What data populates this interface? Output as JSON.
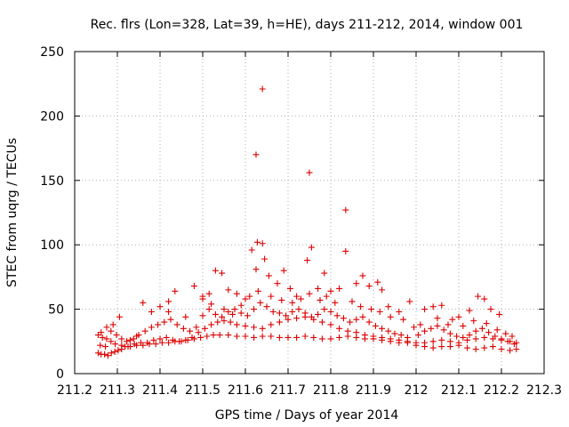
{
  "chart_data": {
    "type": "scatter",
    "title": "Rec. flrs (Lon=328, Lat=39, h=HE), days 211-212, 2014, window 001",
    "xlabel": "GPS time / Days of year 2014",
    "ylabel": "STEC from uqrg / TECUs",
    "xlim": [
      211.2,
      212.3
    ],
    "ylim": [
      0,
      250
    ],
    "xticks": [
      {
        "value": 211.2,
        "label": "211.2"
      },
      {
        "value": 211.3,
        "label": "211.3"
      },
      {
        "value": 211.4,
        "label": "211.4"
      },
      {
        "value": 211.5,
        "label": "211.5"
      },
      {
        "value": 211.6,
        "label": "211.6"
      },
      {
        "value": 211.7,
        "label": "211.7"
      },
      {
        "value": 211.8,
        "label": "211.8"
      },
      {
        "value": 211.9,
        "label": "211.9"
      },
      {
        "value": 212.0,
        "label": "212"
      },
      {
        "value": 212.1,
        "label": "212.1"
      },
      {
        "value": 212.2,
        "label": "212.2"
      },
      {
        "value": 212.3,
        "label": "212.3"
      }
    ],
    "yticks": [
      {
        "value": 0,
        "label": "0"
      },
      {
        "value": 50,
        "label": "50"
      },
      {
        "value": 100,
        "label": "100"
      },
      {
        "value": 150,
        "label": "150"
      },
      {
        "value": 200,
        "label": "200"
      },
      {
        "value": 250,
        "label": "250"
      }
    ],
    "grid": true,
    "marker": "plus",
    "color": "#dd0000",
    "points": [
      [
        211.255,
        16
      ],
      [
        211.262,
        15
      ],
      [
        211.27,
        15
      ],
      [
        211.278,
        14
      ],
      [
        211.286,
        16
      ],
      [
        211.294,
        17
      ],
      [
        211.302,
        18
      ],
      [
        211.31,
        19
      ],
      [
        211.318,
        21
      ],
      [
        211.33,
        21
      ],
      [
        211.345,
        22
      ],
      [
        211.36,
        22
      ],
      [
        211.375,
        23
      ],
      [
        211.39,
        23
      ],
      [
        211.405,
        24
      ],
      [
        211.42,
        24
      ],
      [
        211.435,
        25
      ],
      [
        211.45,
        25
      ],
      [
        211.465,
        26
      ],
      [
        211.48,
        27
      ],
      [
        211.495,
        28
      ],
      [
        211.51,
        29
      ],
      [
        211.525,
        30
      ],
      [
        211.54,
        30
      ],
      [
        211.56,
        30
      ],
      [
        211.58,
        29
      ],
      [
        211.6,
        29
      ],
      [
        211.62,
        28
      ],
      [
        211.64,
        29
      ],
      [
        211.66,
        29
      ],
      [
        211.68,
        28
      ],
      [
        211.7,
        28
      ],
      [
        211.72,
        28
      ],
      [
        211.74,
        29
      ],
      [
        211.76,
        28
      ],
      [
        211.78,
        27
      ],
      [
        211.8,
        27
      ],
      [
        211.82,
        28
      ],
      [
        211.84,
        29
      ],
      [
        211.86,
        28
      ],
      [
        211.88,
        27
      ],
      [
        211.9,
        27
      ],
      [
        211.92,
        26
      ],
      [
        211.94,
        25
      ],
      [
        211.96,
        24
      ],
      [
        211.98,
        24
      ],
      [
        212.0,
        22
      ],
      [
        212.02,
        21
      ],
      [
        212.04,
        20
      ],
      [
        212.06,
        21
      ],
      [
        212.08,
        21
      ],
      [
        212.1,
        22
      ],
      [
        212.12,
        20
      ],
      [
        212.14,
        19
      ],
      [
        212.16,
        20
      ],
      [
        212.18,
        21
      ],
      [
        212.2,
        19
      ],
      [
        212.22,
        18
      ],
      [
        212.235,
        19
      ],
      [
        211.255,
        30
      ],
      [
        211.265,
        28
      ],
      [
        211.275,
        27
      ],
      [
        211.285,
        25
      ],
      [
        211.295,
        23
      ],
      [
        211.31,
        22
      ],
      [
        211.325,
        21
      ],
      [
        211.34,
        23
      ],
      [
        211.355,
        24
      ],
      [
        211.37,
        24
      ],
      [
        211.385,
        26
      ],
      [
        211.4,
        27
      ],
      [
        211.415,
        28
      ],
      [
        211.43,
        26
      ],
      [
        211.445,
        25
      ],
      [
        211.46,
        26
      ],
      [
        211.475,
        28
      ],
      [
        211.49,
        32
      ],
      [
        211.505,
        35
      ],
      [
        211.52,
        38
      ],
      [
        211.535,
        40
      ],
      [
        211.55,
        41
      ],
      [
        211.565,
        40
      ],
      [
        211.58,
        38
      ],
      [
        211.6,
        37
      ],
      [
        211.62,
        36
      ],
      [
        211.64,
        35
      ],
      [
        211.66,
        38
      ],
      [
        211.68,
        40
      ],
      [
        211.7,
        42
      ],
      [
        211.72,
        43
      ],
      [
        211.74,
        44
      ],
      [
        211.76,
        42
      ],
      [
        211.78,
        40
      ],
      [
        211.8,
        38
      ],
      [
        211.82,
        35
      ],
      [
        211.84,
        33
      ],
      [
        211.86,
        32
      ],
      [
        211.88,
        30
      ],
      [
        211.9,
        29
      ],
      [
        211.92,
        28
      ],
      [
        211.94,
        27
      ],
      [
        211.96,
        26
      ],
      [
        211.98,
        25
      ],
      [
        212.0,
        24
      ],
      [
        212.02,
        24
      ],
      [
        212.04,
        25
      ],
      [
        212.06,
        26
      ],
      [
        212.08,
        25
      ],
      [
        212.1,
        24
      ],
      [
        212.12,
        26
      ],
      [
        212.14,
        27
      ],
      [
        212.16,
        28
      ],
      [
        212.18,
        27
      ],
      [
        212.2,
        26
      ],
      [
        212.22,
        25
      ],
      [
        212.235,
        24
      ],
      [
        211.26,
        22
      ],
      [
        211.272,
        21
      ],
      [
        211.285,
        33
      ],
      [
        211.298,
        30
      ],
      [
        211.31,
        27
      ],
      [
        211.322,
        25
      ],
      [
        211.338,
        27
      ],
      [
        211.35,
        30
      ],
      [
        211.365,
        33
      ],
      [
        211.38,
        36
      ],
      [
        211.395,
        38
      ],
      [
        211.41,
        40
      ],
      [
        211.425,
        42
      ],
      [
        211.44,
        38
      ],
      [
        211.455,
        35
      ],
      [
        211.47,
        33
      ],
      [
        211.485,
        36
      ],
      [
        211.5,
        45
      ],
      [
        211.515,
        50
      ],
      [
        211.53,
        46
      ],
      [
        211.545,
        44
      ],
      [
        211.56,
        48
      ],
      [
        211.575,
        50
      ],
      [
        211.59,
        47
      ],
      [
        211.605,
        45
      ],
      [
        211.62,
        50
      ],
      [
        211.635,
        55
      ],
      [
        211.65,
        52
      ],
      [
        211.665,
        48
      ],
      [
        211.68,
        47
      ],
      [
        211.695,
        45
      ],
      [
        211.71,
        48
      ],
      [
        211.725,
        50
      ],
      [
        211.74,
        47
      ],
      [
        211.755,
        44
      ],
      [
        211.77,
        46
      ],
      [
        211.785,
        50
      ],
      [
        211.8,
        48
      ],
      [
        211.815,
        45
      ],
      [
        211.83,
        43
      ],
      [
        211.845,
        40
      ],
      [
        211.86,
        42
      ],
      [
        211.875,
        44
      ],
      [
        211.89,
        40
      ],
      [
        211.905,
        37
      ],
      [
        211.92,
        35
      ],
      [
        211.935,
        33
      ],
      [
        211.95,
        31
      ],
      [
        211.965,
        30
      ],
      [
        211.98,
        28
      ],
      [
        212.005,
        30
      ],
      [
        212.02,
        33
      ],
      [
        212.035,
        35
      ],
      [
        212.05,
        37
      ],
      [
        212.065,
        34
      ],
      [
        212.08,
        31
      ],
      [
        212.095,
        29
      ],
      [
        212.11,
        28
      ],
      [
        212.125,
        30
      ],
      [
        212.14,
        33
      ],
      [
        212.155,
        35
      ],
      [
        212.17,
        32
      ],
      [
        212.185,
        29
      ],
      [
        212.2,
        27
      ],
      [
        212.215,
        25
      ],
      [
        212.23,
        23
      ],
      [
        211.262,
        32
      ],
      [
        211.275,
        36
      ],
      [
        211.29,
        38
      ],
      [
        211.305,
        44
      ],
      [
        211.36,
        55
      ],
      [
        211.38,
        48
      ],
      [
        211.4,
        52
      ],
      [
        211.42,
        56
      ],
      [
        211.435,
        64
      ],
      [
        211.48,
        68
      ],
      [
        211.5,
        58
      ],
      [
        211.515,
        62
      ],
      [
        211.53,
        80
      ],
      [
        211.545,
        78
      ],
      [
        211.56,
        65
      ],
      [
        211.58,
        62
      ],
      [
        211.6,
        58
      ],
      [
        211.615,
        96
      ],
      [
        211.625,
        81
      ],
      [
        211.628,
        102
      ],
      [
        211.64,
        101
      ],
      [
        211.645,
        89
      ],
      [
        211.655,
        76
      ],
      [
        211.675,
        70
      ],
      [
        211.69,
        80
      ],
      [
        211.705,
        66
      ],
      [
        211.72,
        60
      ],
      [
        211.745,
        88
      ],
      [
        211.755,
        98
      ],
      [
        211.77,
        66
      ],
      [
        211.785,
        78
      ],
      [
        211.8,
        64
      ],
      [
        211.82,
        66
      ],
      [
        211.835,
        95
      ],
      [
        211.86,
        70
      ],
      [
        211.875,
        76
      ],
      [
        211.89,
        68
      ],
      [
        211.91,
        71
      ],
      [
        211.92,
        65
      ],
      [
        211.935,
        52
      ],
      [
        211.96,
        48
      ],
      [
        211.985,
        56
      ],
      [
        212.02,
        50
      ],
      [
        212.04,
        52
      ],
      [
        212.06,
        53
      ],
      [
        212.085,
        42
      ],
      [
        212.1,
        44
      ],
      [
        212.125,
        49
      ],
      [
        212.145,
        60
      ],
      [
        212.16,
        58
      ],
      [
        212.175,
        50
      ],
      [
        212.195,
        46
      ],
      [
        211.33,
        26
      ],
      [
        211.345,
        29
      ],
      [
        211.42,
        48
      ],
      [
        211.46,
        44
      ],
      [
        211.5,
        60
      ],
      [
        211.52,
        54
      ],
      [
        211.55,
        50
      ],
      [
        211.57,
        46
      ],
      [
        211.59,
        53
      ],
      [
        211.61,
        60
      ],
      [
        211.63,
        64
      ],
      [
        211.66,
        60
      ],
      [
        211.685,
        57
      ],
      [
        211.71,
        55
      ],
      [
        211.73,
        58
      ],
      [
        211.75,
        62
      ],
      [
        211.775,
        57
      ],
      [
        211.79,
        60
      ],
      [
        211.81,
        55
      ],
      [
        211.85,
        56
      ],
      [
        211.87,
        52
      ],
      [
        211.895,
        50
      ],
      [
        211.915,
        48
      ],
      [
        211.94,
        44
      ],
      [
        211.97,
        42
      ],
      [
        211.995,
        36
      ],
      [
        212.01,
        38
      ],
      [
        212.05,
        43
      ],
      [
        212.075,
        38
      ],
      [
        212.11,
        37
      ],
      [
        212.135,
        41
      ],
      [
        212.165,
        39
      ],
      [
        212.19,
        34
      ],
      [
        212.21,
        31
      ],
      [
        212.225,
        29
      ],
      [
        211.625,
        170
      ],
      [
        211.64,
        221
      ],
      [
        211.75,
        156
      ],
      [
        211.835,
        127
      ]
    ]
  }
}
